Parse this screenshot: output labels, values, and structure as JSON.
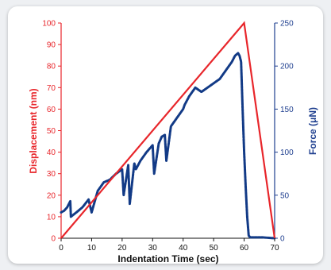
{
  "chart_data": {
    "type": "line",
    "title": "",
    "xlabel": "Indentation Time (sec)",
    "ylabel_left": "Displacement (nm)",
    "ylabel_right": "Force (μN)",
    "xlim": [
      0,
      70
    ],
    "ylim_left": [
      0,
      100
    ],
    "ylim_right": [
      0,
      250
    ],
    "x_ticks": [
      "0",
      "10",
      "20",
      "30",
      "40",
      "50",
      "60",
      "70"
    ],
    "y_left_ticks": [
      "0",
      "10",
      "20",
      "30",
      "40",
      "50",
      "60",
      "70",
      "80",
      "90",
      "100"
    ],
    "y_right_ticks": [
      "0",
      "50",
      "100",
      "150",
      "200",
      "250"
    ],
    "grid": false,
    "colors": {
      "left_axis": "#e8262b",
      "right_axis": "#1f3f8f",
      "force_series": "#123a86",
      "displacement_series": "#e8262b"
    },
    "series": [
      {
        "axis": "right",
        "x": [
          0,
          1,
          2,
          3,
          3.2,
          5,
          7,
          9,
          10,
          12,
          14,
          16,
          18,
          20,
          20.5,
          22,
          22.5,
          24,
          24.5,
          26,
          28,
          30,
          30.5,
          32,
          33,
          34,
          34.5,
          36,
          38,
          40,
          40.5,
          42,
          44,
          46,
          48,
          50,
          52,
          54,
          56,
          57,
          58,
          58.5,
          59,
          59.5,
          60,
          60.5,
          61,
          61.5,
          62,
          66,
          70
        ],
        "y": [
          30,
          32,
          36,
          43,
          25,
          30,
          36,
          45,
          30,
          55,
          65,
          68,
          75,
          80,
          50,
          85,
          40,
          87,
          80,
          90,
          100,
          108,
          75,
          110,
          118,
          120,
          90,
          130,
          140,
          150,
          155,
          165,
          175,
          170,
          175,
          180,
          185,
          195,
          205,
          212,
          215,
          212,
          205,
          150,
          100,
          60,
          25,
          3,
          1,
          1,
          0
        ]
      },
      {
        "axis": "left",
        "x": [
          0,
          60,
          70
        ],
        "y": [
          0,
          100,
          0
        ]
      }
    ]
  }
}
